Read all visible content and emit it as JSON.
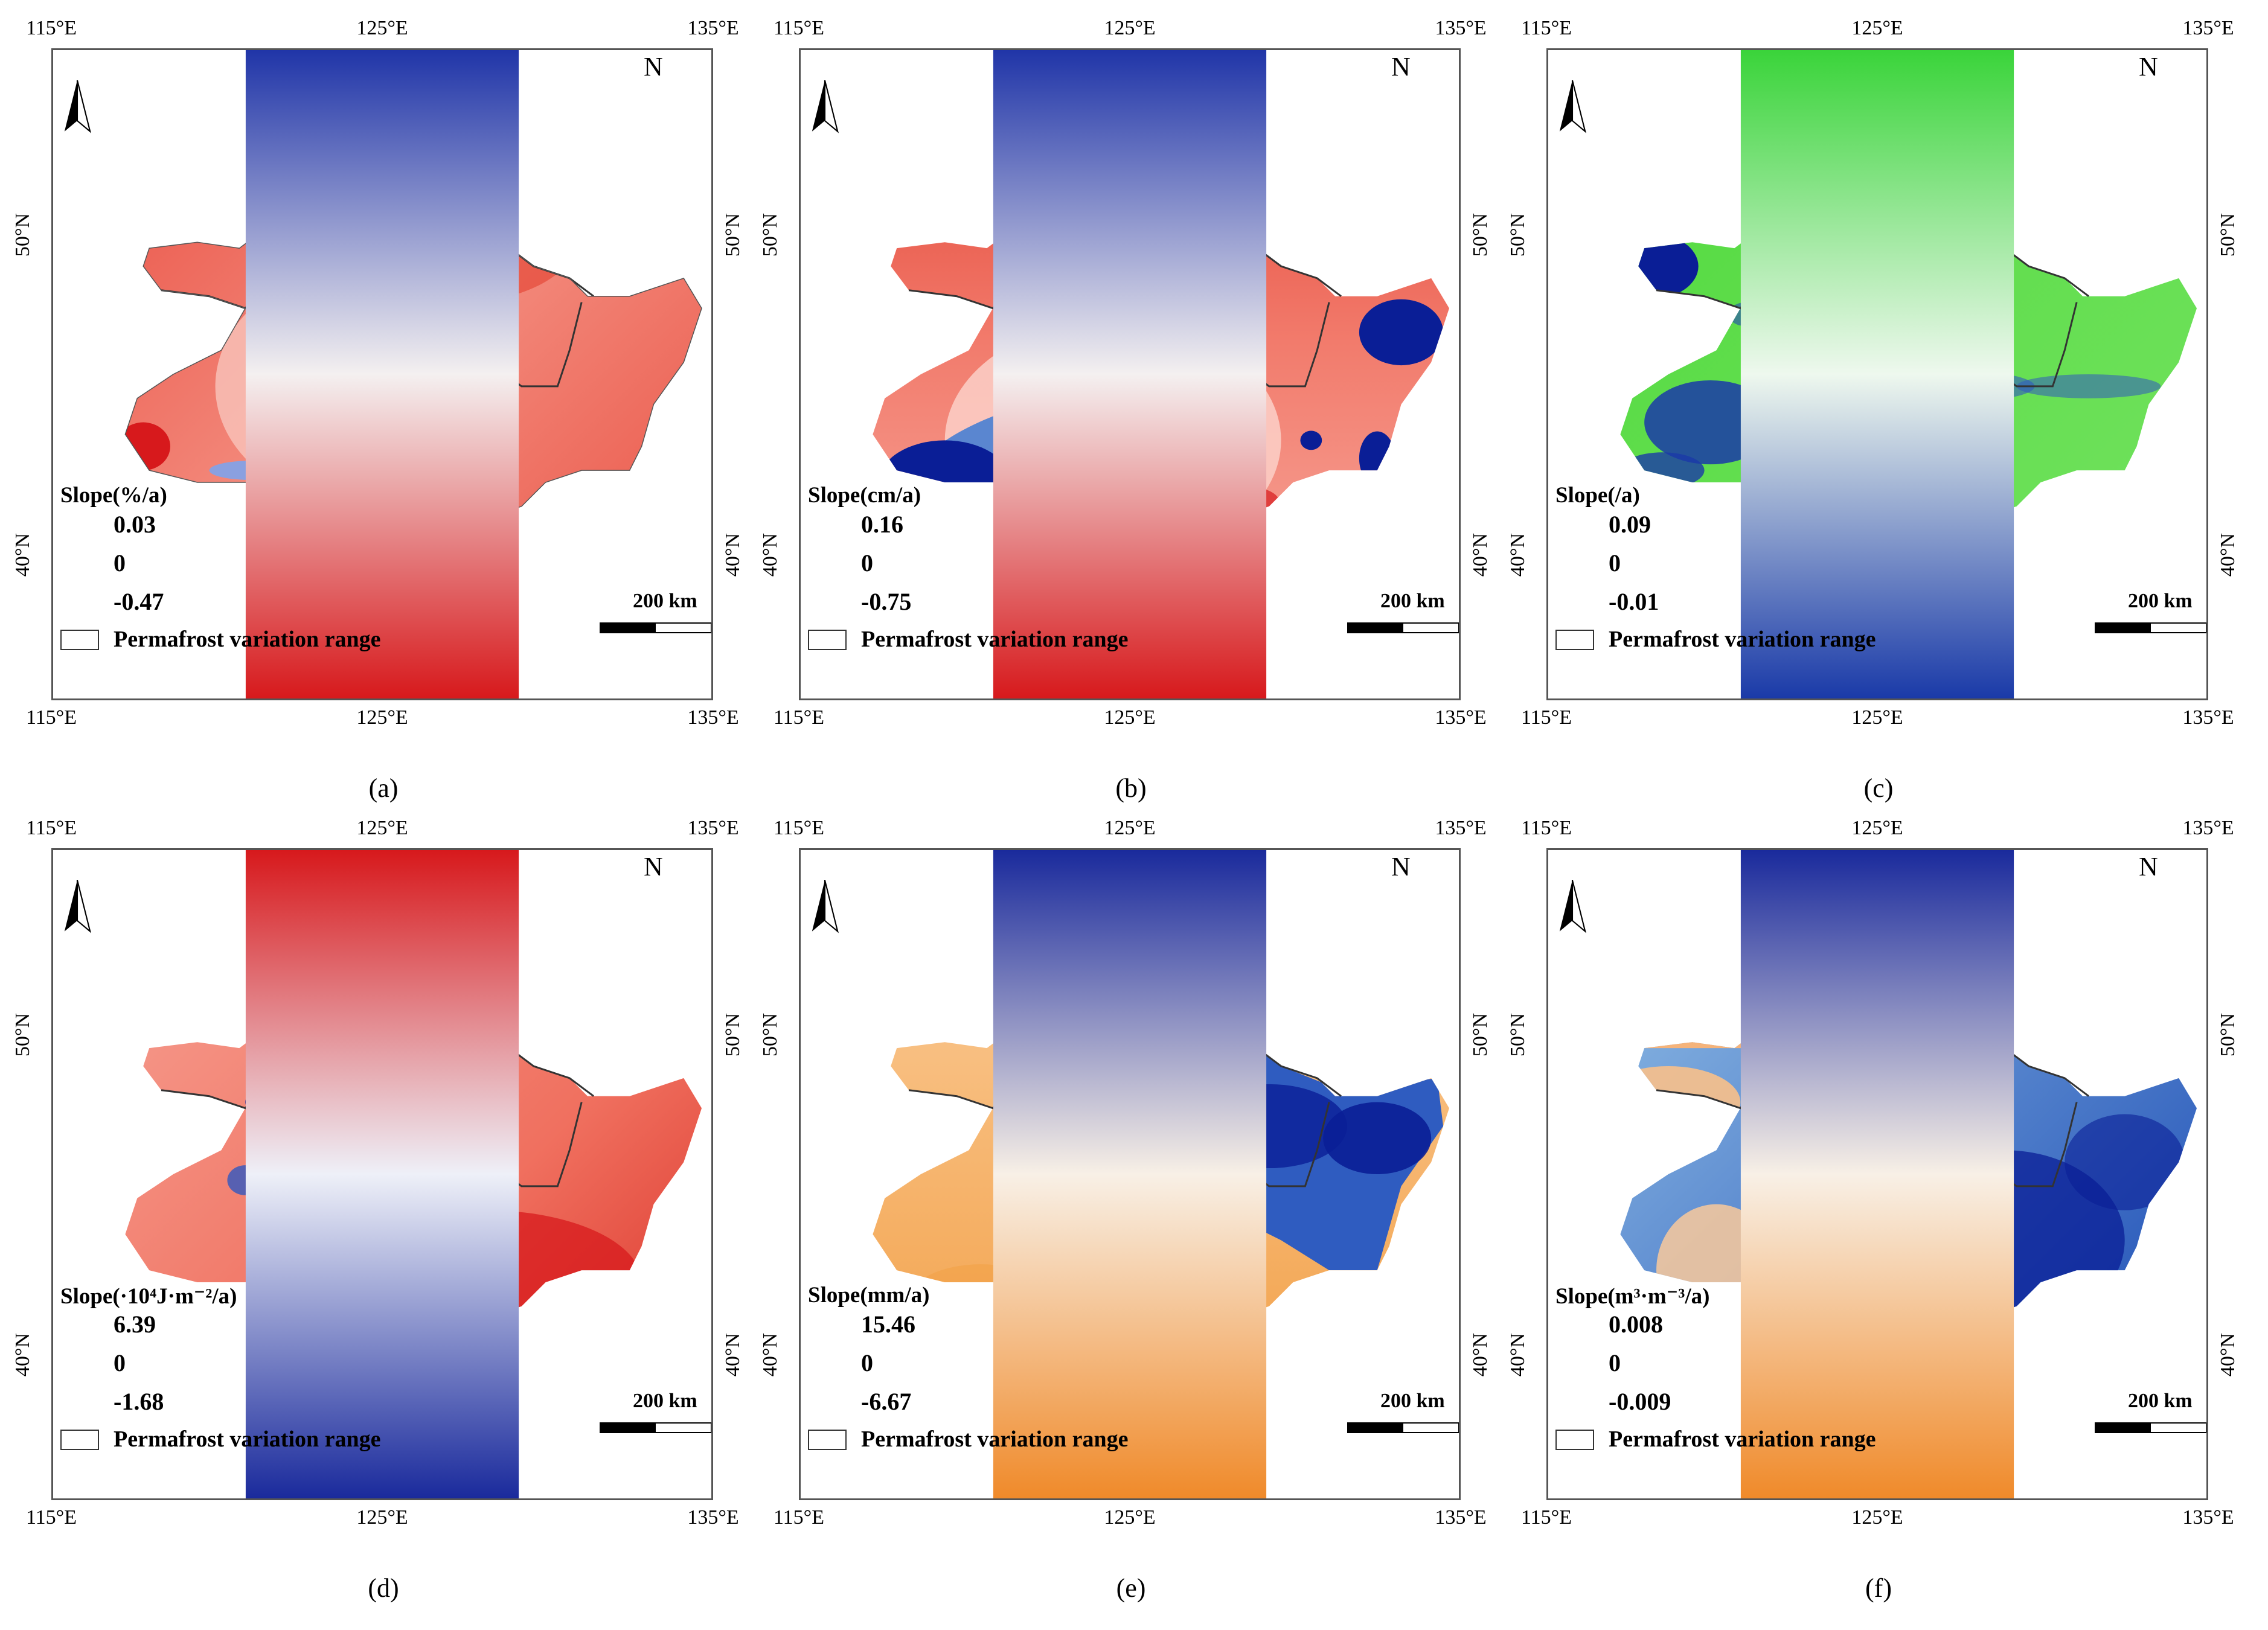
{
  "ticks": {
    "lon_top": [
      "115°E",
      "125°E",
      "135°E"
    ],
    "lon_bottom": [
      "115°E",
      "125°E",
      "135°E"
    ],
    "lat": [
      "50°N",
      "40°N"
    ]
  },
  "common": {
    "north_label": "N",
    "scale_bar": "200 km",
    "permafrost_label": "Permafrost variation range"
  },
  "colors": {
    "red_high": "#d7191c",
    "red_light": "#fbd5d0",
    "blue_deep": "#08209c",
    "blue_light": "#cfe3f3",
    "green": "#5ee04a",
    "orange": "#f2942f",
    "orange_light": "#fbd7b0",
    "boundary": "#333333"
  },
  "panels": [
    {
      "id": "a",
      "caption": "(a)",
      "legend_title": "Slope(%/a)",
      "legend_max": "0.03",
      "legend_mid": "0",
      "legend_min": "-0.47"
    },
    {
      "id": "b",
      "caption": "(b)",
      "legend_title": "Slope(cm/a)",
      "legend_max": "0.16",
      "legend_mid": "0",
      "legend_min": "-0.75"
    },
    {
      "id": "c",
      "caption": "(c)",
      "legend_title": "Slope(/a)",
      "legend_max": "0.09",
      "legend_mid": "0",
      "legend_min": "-0.01"
    },
    {
      "id": "d",
      "caption": "(d)",
      "legend_title": "Slope(·10⁴J·m⁻²/a)",
      "legend_max": "6.39",
      "legend_mid": "0",
      "legend_min": "-1.68"
    },
    {
      "id": "e",
      "caption": "(e)",
      "legend_title": "Slope(mm/a)",
      "legend_max": "15.46",
      "legend_mid": "0",
      "legend_min": "-6.67"
    },
    {
      "id": "f",
      "caption": "(f)",
      "legend_title": "Slope(m³·m⁻³/a)",
      "legend_max": "0.008",
      "legend_mid": "0",
      "legend_min": "-0.009"
    }
  ]
}
